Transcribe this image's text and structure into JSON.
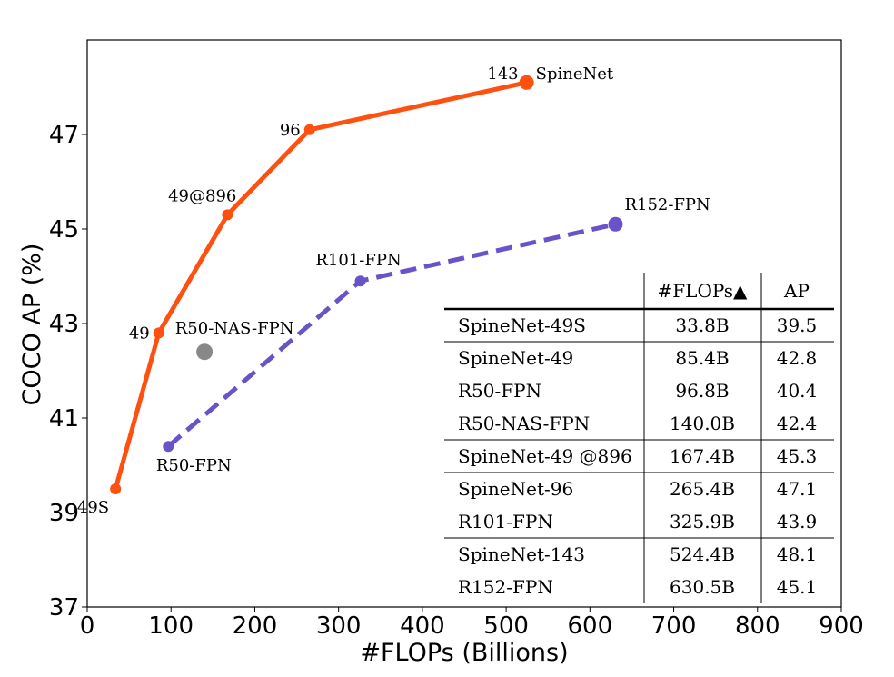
{
  "chart_data": {
    "type": "line",
    "xlabel": "#FLOPs (Billions)",
    "ylabel": "COCO AP (%)",
    "xlim": [
      0,
      900
    ],
    "ylim": [
      37,
      49
    ],
    "xticks": [
      0,
      100,
      200,
      300,
      400,
      500,
      600,
      700,
      800,
      900
    ],
    "yticks": [
      37,
      39,
      41,
      43,
      45,
      47
    ],
    "grid": false,
    "series": [
      {
        "name": "SpineNet",
        "color": "#ff5010",
        "style": "solid",
        "x": [
          33.8,
          85.4,
          167.4,
          265.4,
          524.4
        ],
        "y": [
          39.5,
          42.8,
          45.3,
          47.1,
          48.1
        ],
        "labels": [
          "49S",
          "49",
          "49@896",
          "96",
          "143"
        ]
      },
      {
        "name": "",
        "color": "#6a52c8",
        "style": "dashed",
        "x": [
          96.8,
          325.9,
          630.5
        ],
        "y": [
          40.4,
          43.9,
          45.1
        ],
        "labels": [
          "R50-FPN",
          "R101-FPN",
          "R152-FPN"
        ]
      }
    ],
    "extra_points": [
      {
        "label": "R50-NAS-FPN",
        "x": 140.0,
        "y": 42.4,
        "color": "#888888"
      }
    ],
    "table": {
      "headers": [
        "",
        "#FLOPs▲",
        "AP"
      ],
      "groups": [
        [
          [
            "SpineNet-49S",
            "33.8B",
            "39.5"
          ]
        ],
        [
          [
            "SpineNet-49",
            "85.4B",
            "42.8"
          ],
          [
            "R50-FPN",
            "96.8B",
            "40.4"
          ],
          [
            "R50-NAS-FPN",
            "140.0B",
            "42.4"
          ]
        ],
        [
          [
            "SpineNet-49 @896",
            "167.4B",
            "45.3"
          ]
        ],
        [
          [
            "SpineNet-96",
            "265.4B",
            "47.1"
          ],
          [
            "R101-FPN",
            "325.9B",
            "43.9"
          ]
        ],
        [
          [
            "SpineNet-143",
            "524.4B",
            "48.1"
          ],
          [
            "R152-FPN",
            "630.5B",
            "45.1"
          ]
        ]
      ]
    }
  }
}
